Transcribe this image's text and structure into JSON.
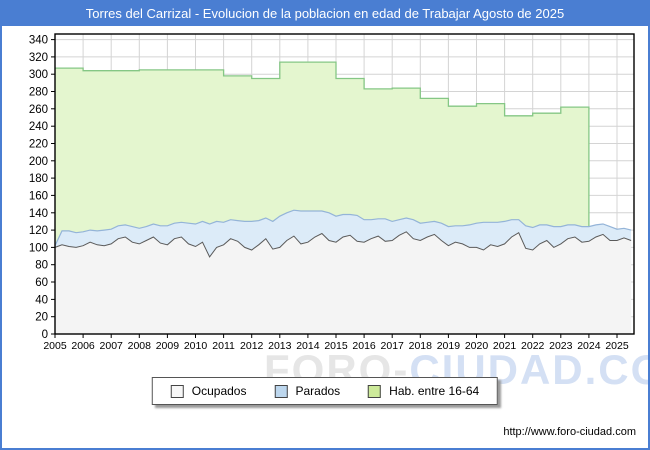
{
  "title": "Torres del Carrizal - Evolucion de la poblacion en edad de Trabajar Agosto de 2025",
  "footer": {
    "url": "http://www.foro-ciudad.com"
  },
  "watermark": {
    "part1": "FORO-",
    "part2": "CIUDAD.COM"
  },
  "colors": {
    "titlebar": "#4a7ed2",
    "frame_border": "#4a7ed2",
    "gridline": "#d4d4d4",
    "axis": "#000000",
    "hab_fill": "#e4f6cf",
    "hab_line": "#85c785",
    "parados_fill": "#dcebf8",
    "parados_line": "#94b4d8",
    "ocupados_fill": "#f4f4f4",
    "ocupados_line": "#5a5a5a"
  },
  "legend": [
    {
      "label": "Ocupados",
      "swatch": "#f7f7f7"
    },
    {
      "label": "Parados",
      "swatch": "#bdd7ee"
    },
    {
      "label": "Hab. entre 16-64",
      "swatch": "#cdea9a"
    }
  ],
  "chart_data": {
    "type": "area",
    "title": "Torres del Carrizal - Evolucion de la poblacion en edad de Trabajar Agosto de 2025",
    "xlabel": "",
    "ylabel": "",
    "ylim": [
      0,
      340
    ],
    "y_tick_step": 20,
    "x_ticks": [
      2005,
      2006,
      2007,
      2008,
      2009,
      2010,
      2011,
      2012,
      2013,
      2014,
      2015,
      2016,
      2017,
      2018,
      2019,
      2020,
      2021,
      2022,
      2023,
      2024,
      2025
    ],
    "x_end": 2025.583,
    "grid": true,
    "legend_position": "bottom",
    "series": [
      {
        "name": "Hab. entre 16-64",
        "kind": "annual-step",
        "years": [
          2005,
          2006,
          2007,
          2008,
          2009,
          2010,
          2011,
          2012,
          2013,
          2014,
          2015,
          2016,
          2017,
          2018,
          2019,
          2020,
          2021,
          2022,
          2023
        ],
        "values": [
          307,
          304,
          304,
          305,
          305,
          305,
          298,
          295,
          314,
          314,
          295,
          283,
          284,
          272,
          263,
          266,
          252,
          255,
          262
        ],
        "ends_at": 2024.0
      },
      {
        "name": "Parados",
        "kind": "quarterly-stacked-on-ocupados",
        "x_start": 2005.0,
        "x_step": 0.25,
        "values": [
          2,
          16,
          18,
          17,
          16,
          14,
          16,
          18,
          17,
          15,
          14,
          18,
          18,
          16,
          15,
          20,
          22,
          18,
          17,
          24,
          26,
          24,
          38,
          30,
          26,
          22,
          24,
          30,
          33,
          28,
          24,
          32,
          36,
          32,
          30,
          38,
          36,
          30,
          26,
          32,
          30,
          26,
          24,
          30,
          26,
          22,
          20,
          26,
          22,
          18,
          16,
          22,
          20,
          17,
          15,
          20,
          22,
          19,
          21,
          26,
          28,
          32,
          26,
          28,
          26,
          20,
          15,
          26,
          26,
          22,
          18,
          24,
          20,
          16,
          14,
          18,
          17,
          14,
          12,
          16,
          13,
          11,
          12
        ]
      },
      {
        "name": "Ocupados",
        "kind": "quarterly",
        "x_start": 2005.0,
        "x_step": 0.25,
        "values": [
          100,
          103,
          101,
          100,
          102,
          106,
          103,
          102,
          104,
          110,
          112,
          106,
          104,
          108,
          112,
          105,
          103,
          110,
          112,
          104,
          101,
          106,
          89,
          100,
          103,
          110,
          107,
          100,
          97,
          103,
          110,
          98,
          100,
          108,
          113,
          104,
          106,
          112,
          116,
          108,
          106,
          112,
          114,
          107,
          106,
          110,
          113,
          107,
          108,
          114,
          118,
          110,
          108,
          112,
          115,
          108,
          102,
          106,
          104,
          100,
          100,
          97,
          103,
          101,
          104,
          112,
          117,
          99,
          97,
          104,
          108,
          100,
          104,
          110,
          112,
          106,
          107,
          112,
          115,
          108,
          108,
          111,
          108
        ]
      }
    ]
  }
}
